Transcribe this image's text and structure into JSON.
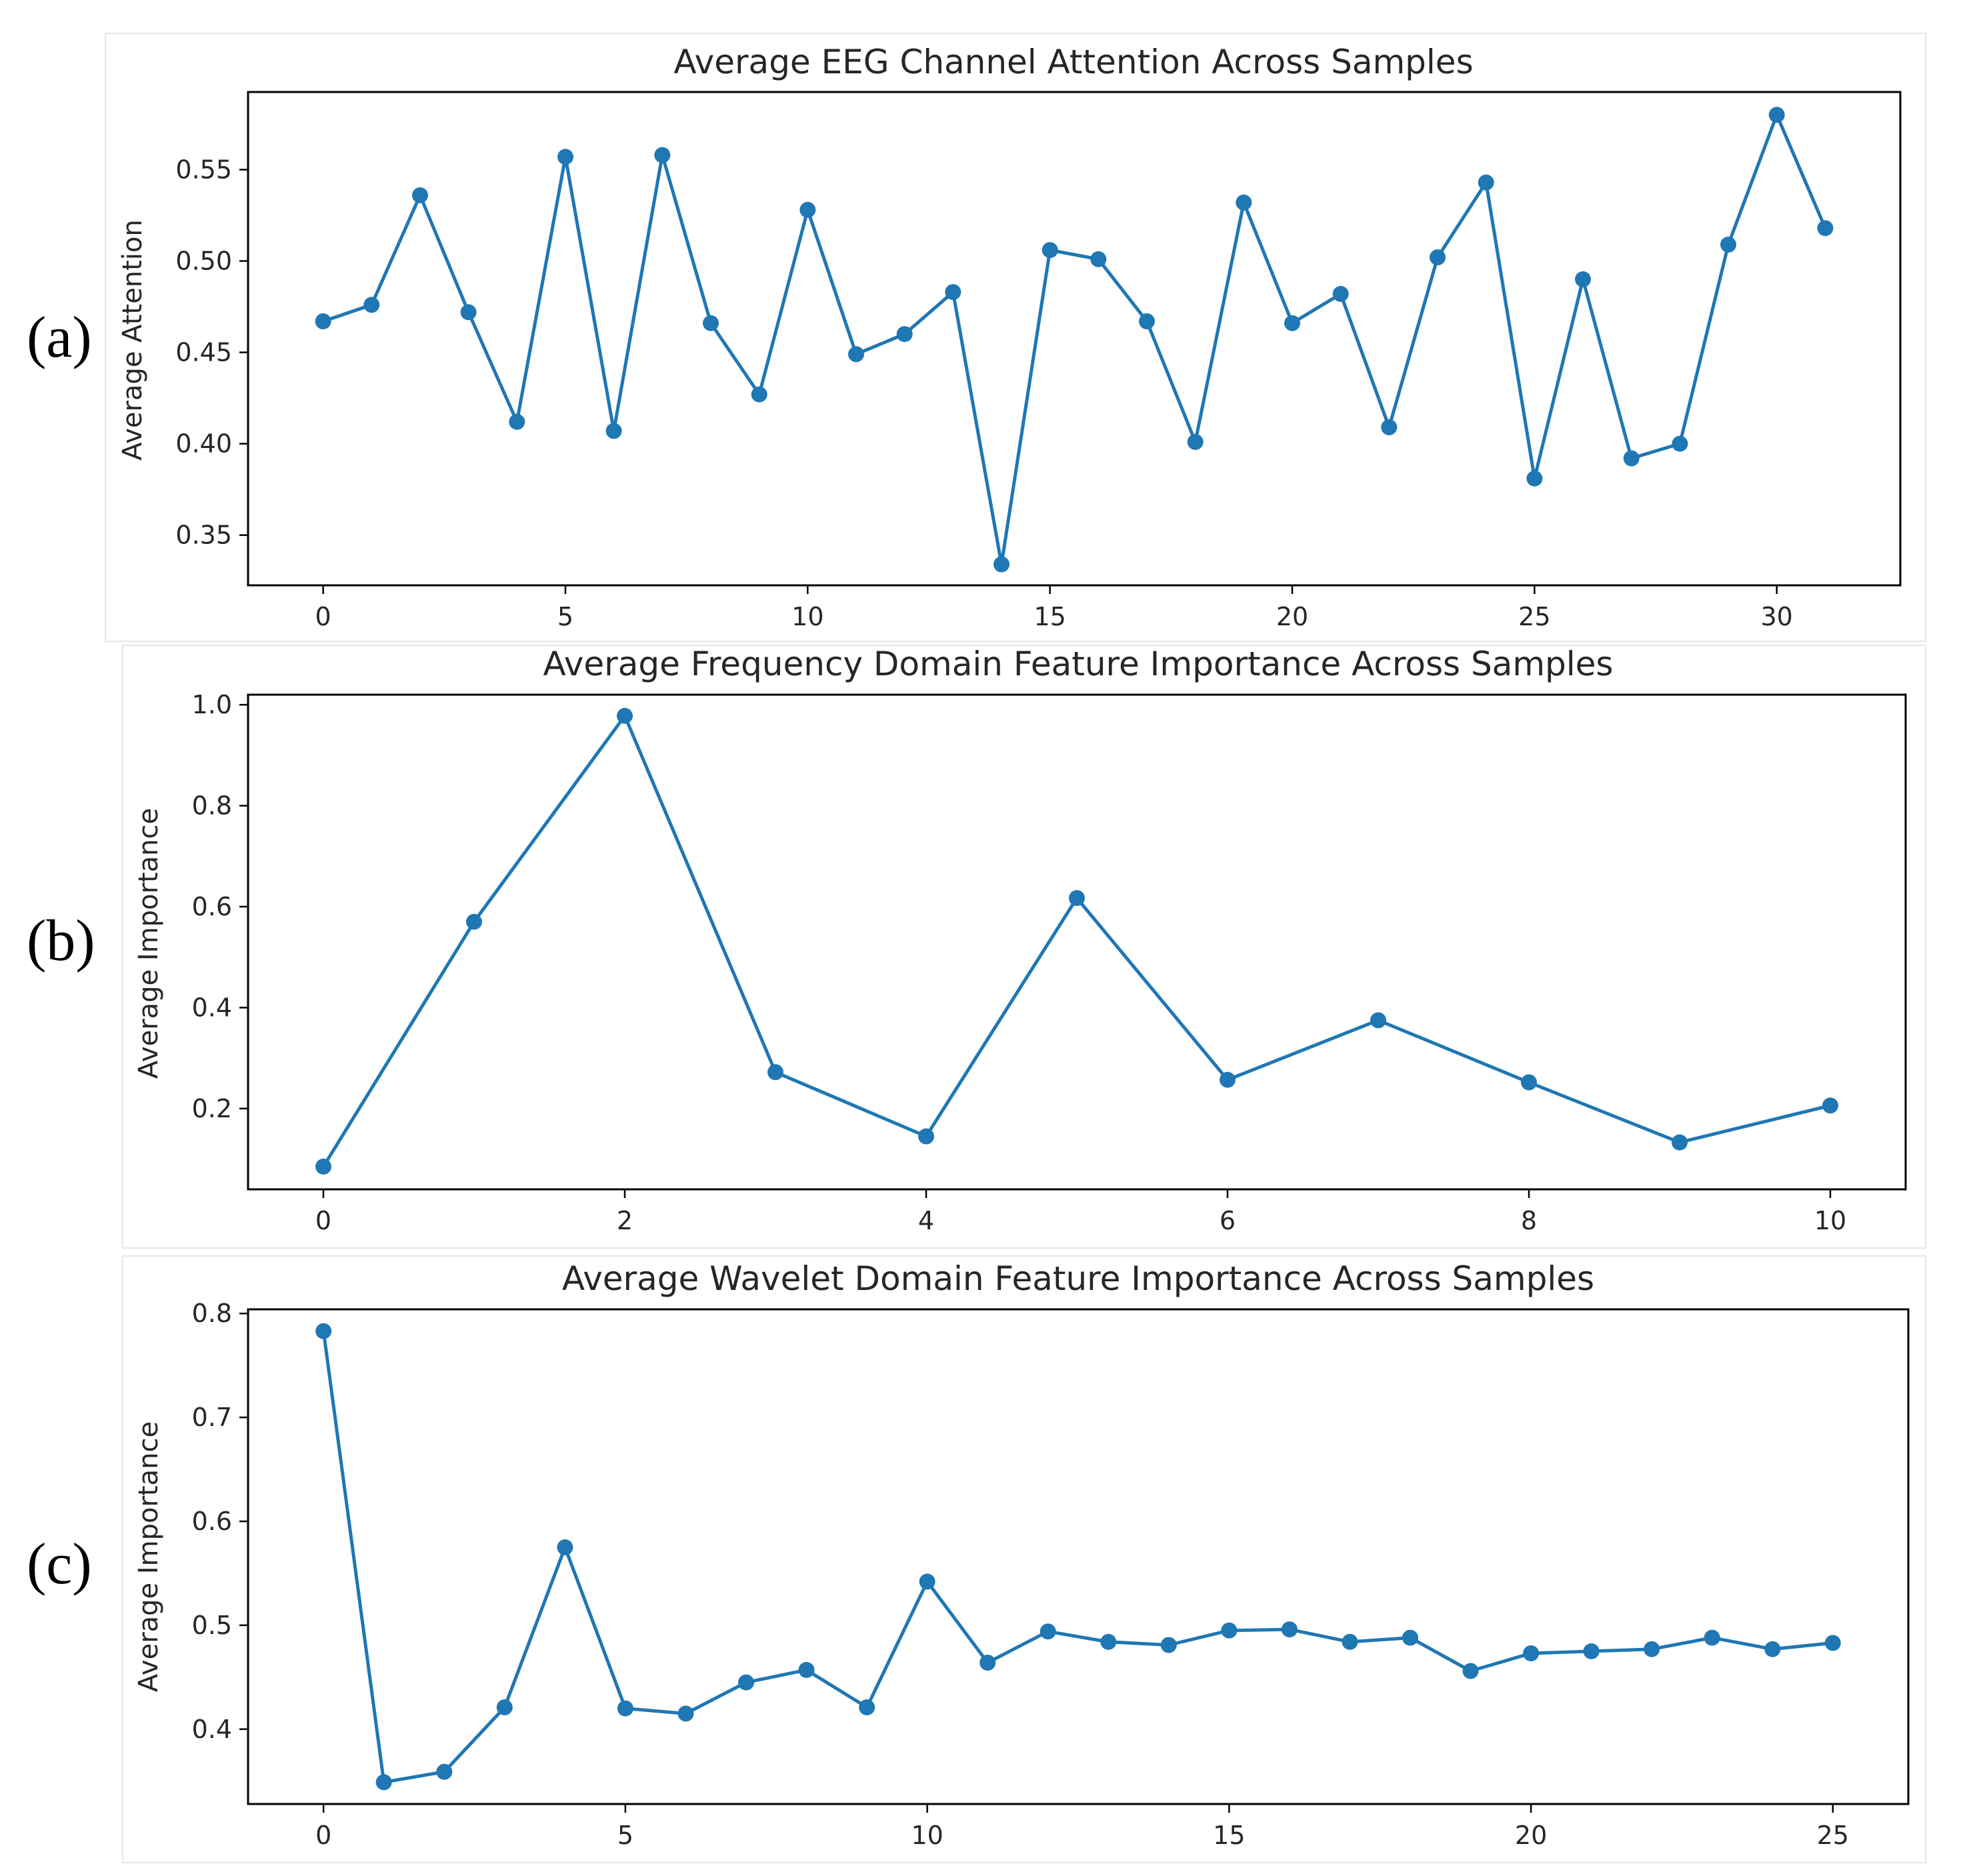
{
  "chart_data": [
    {
      "type": "line",
      "panel_label": "(a)",
      "title": "Average EEG Channel Attention Across Samples",
      "xlabel": "",
      "ylabel": "Average Attention",
      "x": [
        0,
        1,
        2,
        3,
        4,
        5,
        6,
        7,
        8,
        9,
        10,
        11,
        12,
        13,
        14,
        15,
        16,
        17,
        18,
        19,
        20,
        21,
        22,
        23,
        24,
        25,
        26,
        27,
        28,
        29,
        30,
        31
      ],
      "values": [
        0.467,
        0.476,
        0.536,
        0.472,
        0.412,
        0.557,
        0.407,
        0.558,
        0.466,
        0.427,
        0.528,
        0.449,
        0.46,
        0.483,
        0.334,
        0.506,
        0.501,
        0.467,
        0.401,
        0.532,
        0.466,
        0.482,
        0.409,
        0.502,
        0.543,
        0.381,
        0.49,
        0.392,
        0.4,
        0.509,
        0.58,
        0.518
      ],
      "xlim": [
        -1.55,
        32.55
      ],
      "ylim": [
        0.3225,
        0.5925
      ],
      "xticks": [
        0,
        5,
        10,
        15,
        20,
        25,
        30
      ],
      "xtick_labels": [
        "0",
        "5",
        "10",
        "15",
        "20",
        "25",
        "30"
      ],
      "yticks": [
        0.35,
        0.4,
        0.45,
        0.5,
        0.55
      ],
      "ytick_labels": [
        "0.35",
        "0.40",
        "0.45",
        "0.50",
        "0.55"
      ],
      "grid": false,
      "color": "#1f77b4"
    },
    {
      "type": "line",
      "panel_label": "(b)",
      "title": "Average Frequency Domain Feature Importance Across Samples",
      "xlabel": "",
      "ylabel": "Average Importance",
      "x": [
        0,
        1,
        2,
        3,
        4,
        5,
        6,
        7,
        8,
        9,
        10
      ],
      "values": [
        0.085,
        0.57,
        0.978,
        0.272,
        0.145,
        0.617,
        0.257,
        0.375,
        0.252,
        0.133,
        0.206
      ],
      "xlim": [
        -0.5,
        10.5
      ],
      "ylim": [
        0.04,
        1.02
      ],
      "xticks": [
        0,
        2,
        4,
        6,
        8,
        10
      ],
      "xtick_labels": [
        "0",
        "2",
        "4",
        "6",
        "8",
        "10"
      ],
      "yticks": [
        0.2,
        0.4,
        0.6,
        0.8,
        1.0
      ],
      "ytick_labels": [
        "0.2",
        "0.4",
        "0.6",
        "0.8",
        "1.0"
      ],
      "grid": false,
      "color": "#1f77b4"
    },
    {
      "type": "line",
      "panel_label": "(c)",
      "title": "Average Wavelet Domain Feature Importance Across Samples",
      "xlabel": "",
      "ylabel": "Average Importance",
      "x": [
        0,
        1,
        2,
        3,
        4,
        5,
        6,
        7,
        8,
        9,
        10,
        11,
        12,
        13,
        14,
        15,
        16,
        17,
        18,
        19,
        20,
        21,
        22,
        23,
        24,
        25
      ],
      "values": [
        0.783,
        0.349,
        0.359,
        0.421,
        0.575,
        0.42,
        0.415,
        0.445,
        0.457,
        0.421,
        0.542,
        0.464,
        0.494,
        0.484,
        0.481,
        0.495,
        0.496,
        0.484,
        0.488,
        0.456,
        0.473,
        0.475,
        0.477,
        0.488,
        0.477,
        0.483
      ],
      "xlim": [
        -1.25,
        26.25
      ],
      "ylim": [
        0.328,
        0.804
      ],
      "xticks": [
        0,
        5,
        10,
        15,
        20,
        25
      ],
      "xtick_labels": [
        "0",
        "5",
        "10",
        "15",
        "20",
        "25"
      ],
      "yticks": [
        0.4,
        0.5,
        0.6,
        0.7,
        0.8
      ],
      "ytick_labels": [
        "0.4",
        "0.5",
        "0.6",
        "0.7",
        "0.8"
      ],
      "grid": false,
      "color": "#1f77b4"
    }
  ]
}
